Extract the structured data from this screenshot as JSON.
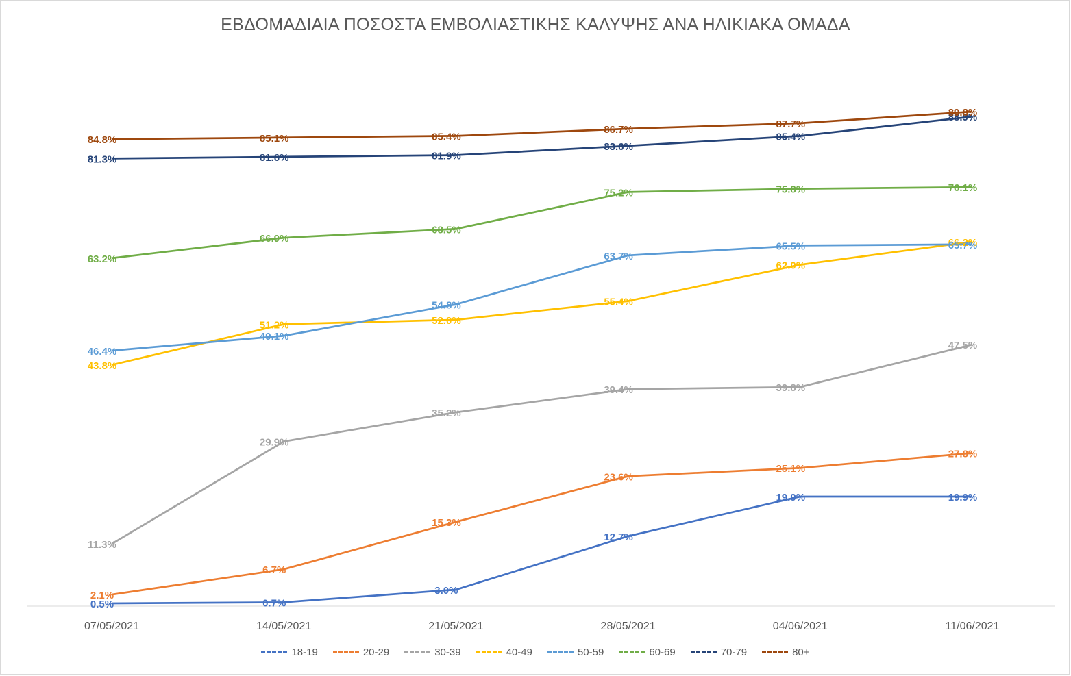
{
  "chart_data": {
    "type": "line",
    "title": "ΕΒΔΟΜΑΔΙΑΙΑ ΠΟΣΟΣΤΑ ΕΜΒΟΛΙΑΣΤΙΚΗΣ ΚΑΛΥΨΗΣ ΑΝΑ ΗΛΙΚΙΑΚΑ ΟΜΑΔΑ",
    "xlabel": "",
    "ylabel": "",
    "categories": [
      "07/05/2021",
      "14/05/2021",
      "21/05/2021",
      "28/05/2021",
      "04/06/2021",
      "11/06/2021"
    ],
    "ylim": [
      0,
      100
    ],
    "grid": false,
    "legend_position": "bottom",
    "value_suffix": "%",
    "series": [
      {
        "name": "18-19",
        "color": "#4472C4",
        "values": [
          0.5,
          0.7,
          3.0,
          12.7,
          19.9,
          19.9
        ]
      },
      {
        "name": "20-29",
        "color": "#ED7D31",
        "values": [
          2.1,
          6.7,
          15.3,
          23.6,
          25.1,
          27.8
        ]
      },
      {
        "name": "30-39",
        "color": "#A5A5A5",
        "values": [
          11.3,
          29.9,
          35.2,
          39.4,
          39.8,
          47.5
        ]
      },
      {
        "name": "40-49",
        "color": "#FFC000",
        "values": [
          43.8,
          51.2,
          52.0,
          55.4,
          62.0,
          66.2
        ]
      },
      {
        "name": "50-59",
        "color": "#5B9BD5",
        "values": [
          46.4,
          49.1,
          54.8,
          63.7,
          65.5,
          65.7
        ]
      },
      {
        "name": "60-69",
        "color": "#70AD47",
        "values": [
          63.2,
          66.9,
          68.5,
          75.2,
          75.8,
          76.1
        ]
      },
      {
        "name": "70-79",
        "color": "#264478",
        "values": [
          81.3,
          81.6,
          81.9,
          83.6,
          85.4,
          88.9
        ]
      },
      {
        "name": "80+",
        "color": "#9E480E",
        "values": [
          84.8,
          85.1,
          85.4,
          86.7,
          87.7,
          89.8
        ]
      }
    ]
  }
}
